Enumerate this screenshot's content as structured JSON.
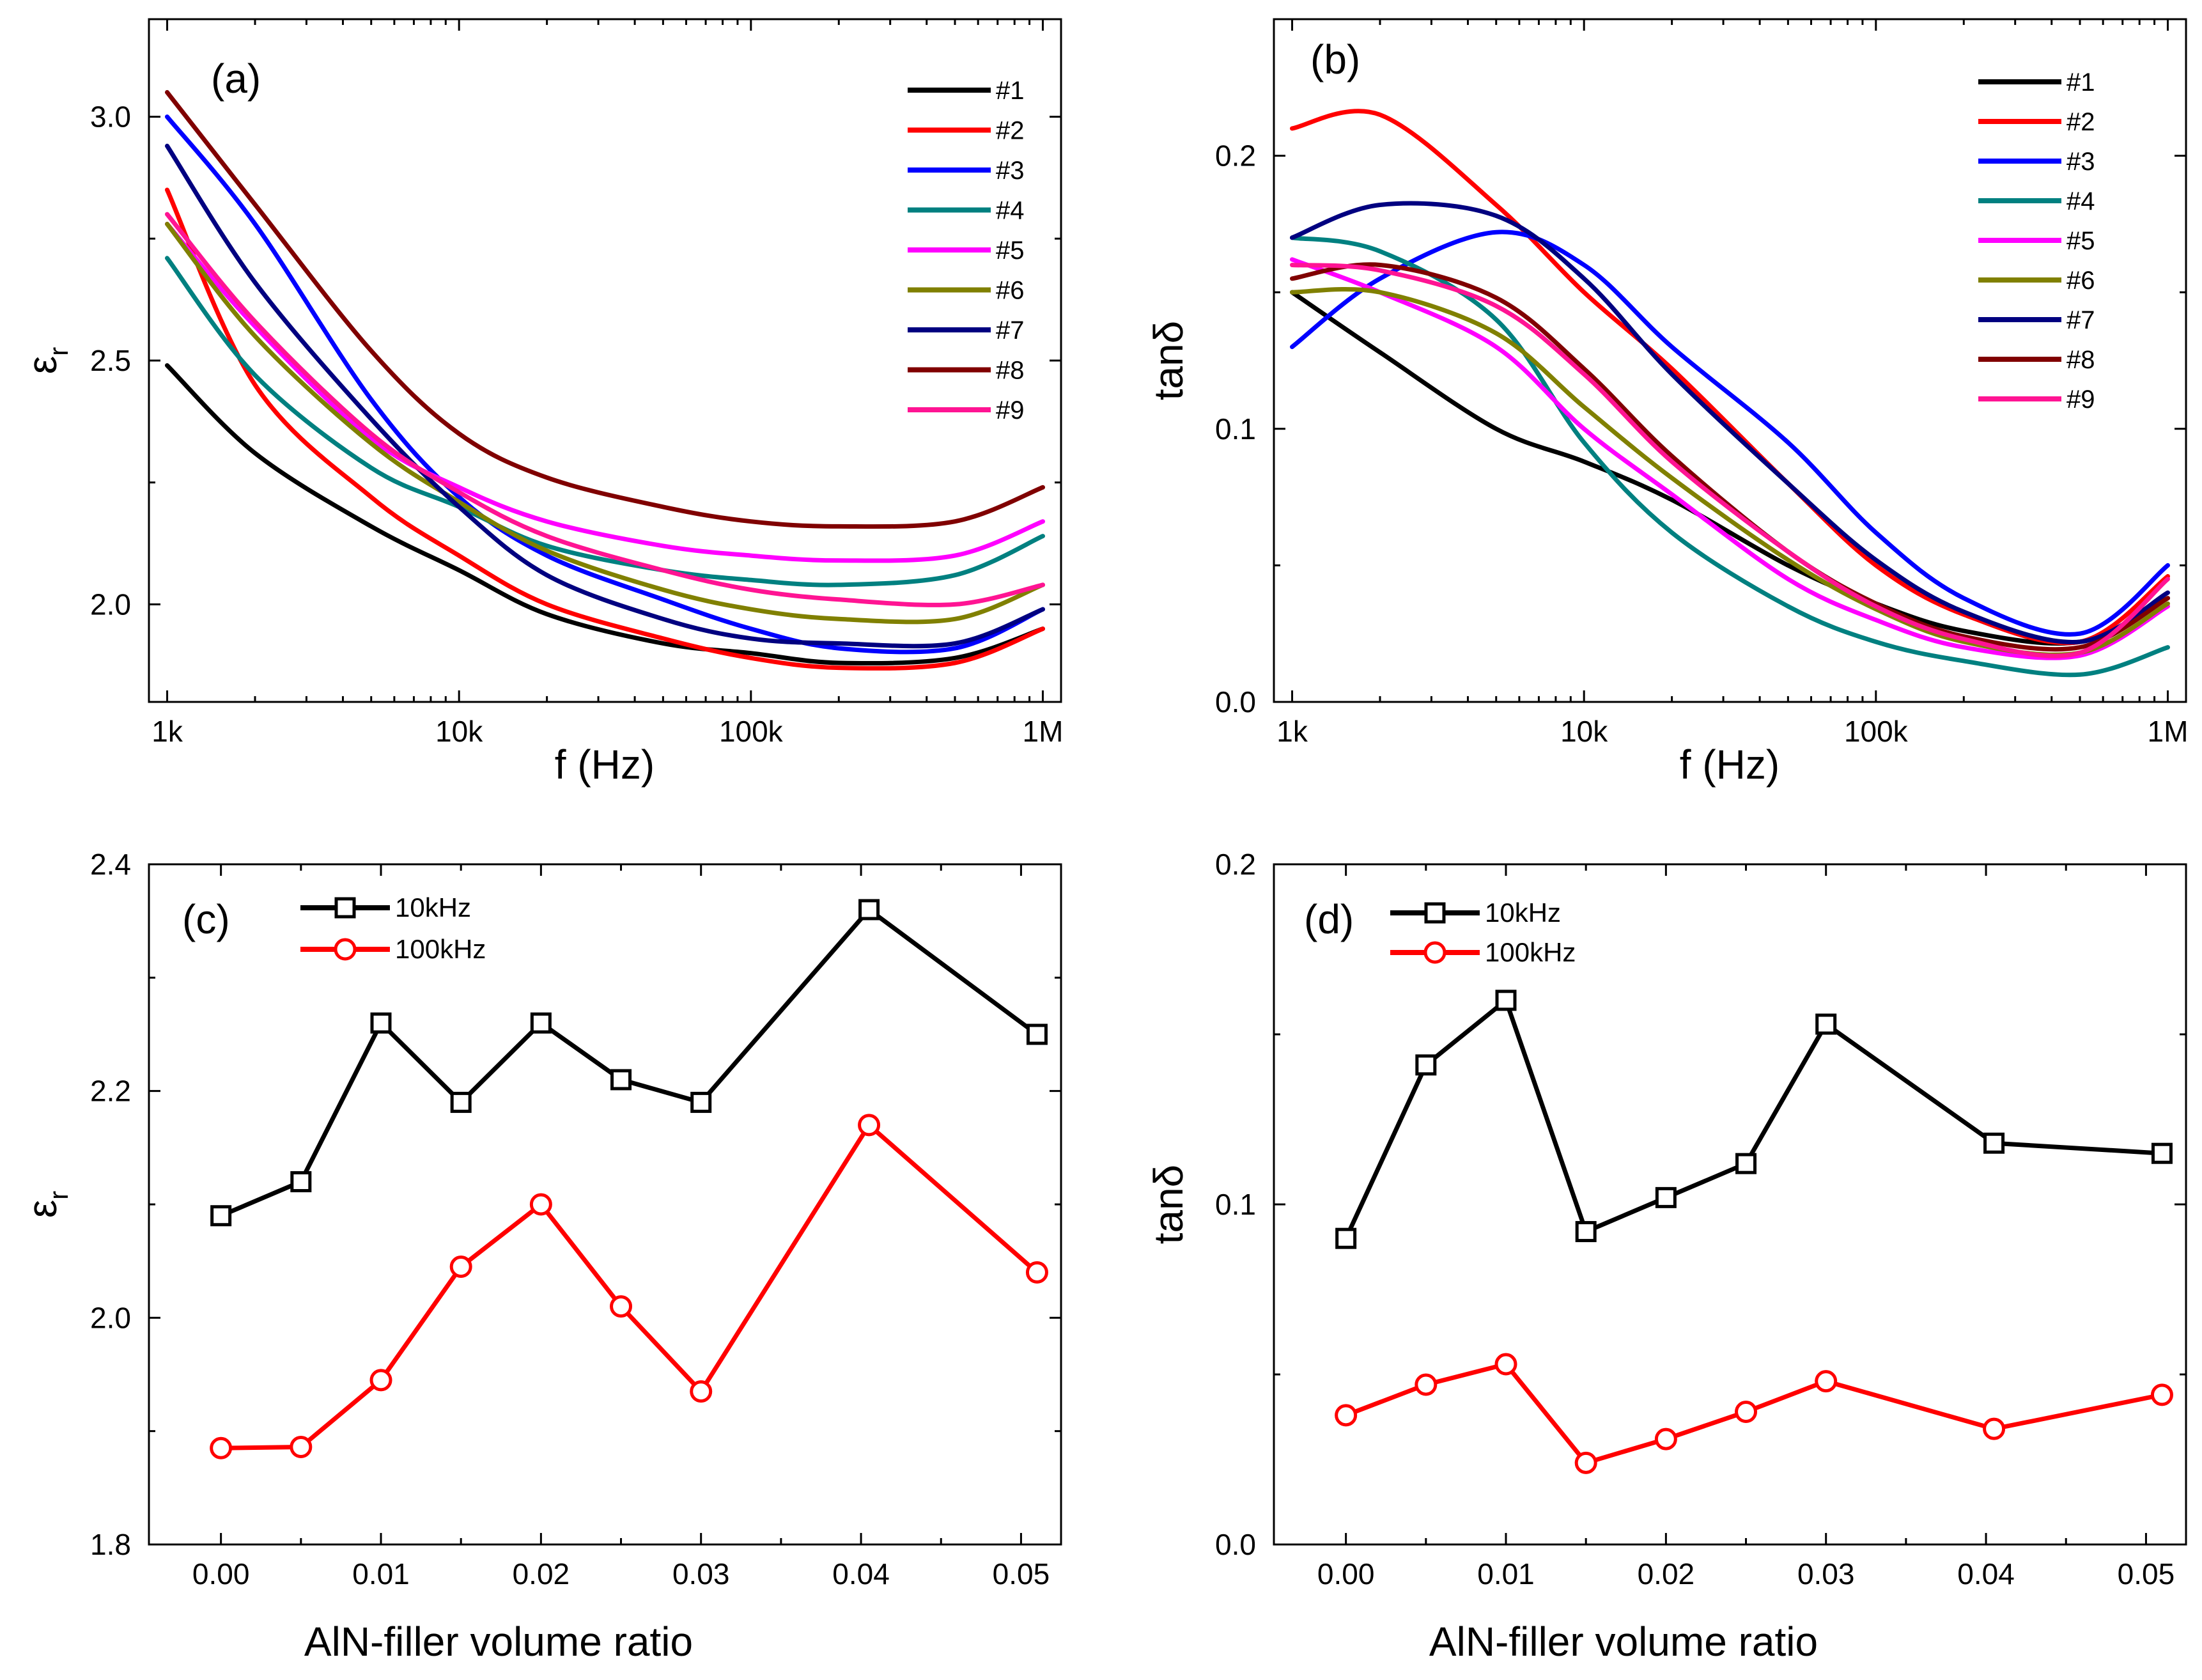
{
  "chart_data": [
    {
      "id": "a",
      "type": "line",
      "panel_label": "(a)",
      "xlabel": "f (Hz)",
      "ylabel": "εr",
      "xscale": "log",
      "xlim": [
        1000,
        1000000
      ],
      "ylim": [
        1.8,
        3.2
      ],
      "xticks": [
        1000,
        10000,
        100000,
        1000000
      ],
      "xtick_labels": [
        "1k",
        "10k",
        "100k",
        "1M"
      ],
      "yticks": [
        2.0,
        2.5,
        3.0
      ],
      "ytick_labels": [
        "2.0",
        "2.5",
        "3.0"
      ],
      "legend_position": "top-right",
      "series": [
        {
          "name": "#1",
          "color": "#000000",
          "x": [
            1000,
            2000,
            5000,
            10000,
            20000,
            50000,
            100000,
            200000,
            500000,
            1000000
          ],
          "y": [
            2.49,
            2.31,
            2.16,
            2.07,
            1.98,
            1.92,
            1.9,
            1.88,
            1.89,
            1.95
          ]
        },
        {
          "name": "#2",
          "color": "#ff0000",
          "x": [
            1000,
            2000,
            5000,
            10000,
            20000,
            50000,
            100000,
            200000,
            500000,
            1000000
          ],
          "y": [
            2.85,
            2.45,
            2.22,
            2.1,
            2.0,
            1.93,
            1.89,
            1.87,
            1.88,
            1.95
          ]
        },
        {
          "name": "#3",
          "color": "#0000ff",
          "x": [
            1000,
            2000,
            5000,
            10000,
            20000,
            50000,
            100000,
            200000,
            500000,
            1000000
          ],
          "y": [
            3.0,
            2.78,
            2.42,
            2.22,
            2.1,
            2.01,
            1.95,
            1.91,
            1.91,
            1.99
          ]
        },
        {
          "name": "#4",
          "color": "#008080",
          "x": [
            1000,
            2000,
            5000,
            10000,
            20000,
            50000,
            100000,
            200000,
            500000,
            1000000
          ],
          "y": [
            2.71,
            2.47,
            2.28,
            2.2,
            2.12,
            2.07,
            2.05,
            2.04,
            2.06,
            2.14
          ]
        },
        {
          "name": "#5",
          "color": "#ff00ff",
          "x": [
            1000,
            2000,
            5000,
            10000,
            20000,
            50000,
            100000,
            200000,
            500000,
            1000000
          ],
          "y": [
            2.78,
            2.57,
            2.34,
            2.24,
            2.17,
            2.12,
            2.1,
            2.09,
            2.1,
            2.17
          ]
        },
        {
          "name": "#6",
          "color": "#808000",
          "x": [
            1000,
            2000,
            5000,
            10000,
            20000,
            50000,
            100000,
            200000,
            500000,
            1000000
          ],
          "y": [
            2.78,
            2.55,
            2.33,
            2.21,
            2.11,
            2.03,
            1.99,
            1.97,
            1.97,
            2.04
          ]
        },
        {
          "name": "#7",
          "color": "#000080",
          "x": [
            1000,
            2000,
            5000,
            10000,
            20000,
            50000,
            100000,
            200000,
            500000,
            1000000
          ],
          "y": [
            2.94,
            2.66,
            2.38,
            2.2,
            2.06,
            1.97,
            1.93,
            1.92,
            1.92,
            1.99
          ]
        },
        {
          "name": "#8",
          "color": "#800000",
          "x": [
            1000,
            2000,
            5000,
            10000,
            20000,
            50000,
            100000,
            200000,
            500000,
            1000000
          ],
          "y": [
            3.05,
            2.82,
            2.52,
            2.35,
            2.26,
            2.2,
            2.17,
            2.16,
            2.17,
            2.24
          ]
        },
        {
          "name": "#9",
          "color": "#ff1493",
          "x": [
            1000,
            2000,
            5000,
            10000,
            20000,
            50000,
            100000,
            200000,
            500000,
            1000000
          ],
          "y": [
            2.8,
            2.58,
            2.35,
            2.23,
            2.14,
            2.07,
            2.03,
            2.01,
            2.0,
            2.04
          ]
        }
      ]
    },
    {
      "id": "b",
      "type": "line",
      "panel_label": "(b)",
      "xlabel": "f (Hz)",
      "ylabel": "tanδ",
      "xscale": "log",
      "xlim": [
        1000,
        1000000
      ],
      "ylim": [
        0.0,
        0.25
      ],
      "xticks": [
        1000,
        10000,
        100000,
        1000000
      ],
      "xtick_labels": [
        "1k",
        "10k",
        "100k",
        "1M"
      ],
      "yticks": [
        0.0,
        0.1,
        0.2
      ],
      "ytick_labels": [
        "0.0",
        "0.1",
        "0.2"
      ],
      "legend_position": "top-right",
      "series": [
        {
          "name": "#1",
          "color": "#000000",
          "x": [
            1000,
            2000,
            5000,
            10000,
            20000,
            50000,
            100000,
            200000,
            500000,
            1000000
          ],
          "y": [
            0.15,
            0.128,
            0.1,
            0.088,
            0.074,
            0.05,
            0.036,
            0.026,
            0.022,
            0.038
          ]
        },
        {
          "name": "#2",
          "color": "#ff0000",
          "x": [
            1000,
            2000,
            5000,
            10000,
            20000,
            50000,
            100000,
            200000,
            500000,
            1000000
          ],
          "y": [
            0.21,
            0.215,
            0.182,
            0.15,
            0.122,
            0.08,
            0.05,
            0.032,
            0.022,
            0.046
          ]
        },
        {
          "name": "#3",
          "color": "#0000ff",
          "x": [
            1000,
            2000,
            5000,
            10000,
            20000,
            50000,
            100000,
            200000,
            500000,
            1000000
          ],
          "y": [
            0.13,
            0.155,
            0.172,
            0.16,
            0.13,
            0.095,
            0.062,
            0.038,
            0.025,
            0.05
          ]
        },
        {
          "name": "#4",
          "color": "#008080",
          "x": [
            1000,
            2000,
            5000,
            10000,
            20000,
            50000,
            100000,
            200000,
            500000,
            1000000
          ],
          "y": [
            0.17,
            0.165,
            0.14,
            0.095,
            0.062,
            0.035,
            0.022,
            0.015,
            0.01,
            0.02
          ]
        },
        {
          "name": "#5",
          "color": "#ff00ff",
          "x": [
            1000,
            2000,
            5000,
            10000,
            20000,
            50000,
            100000,
            200000,
            500000,
            1000000
          ],
          "y": [
            0.162,
            0.15,
            0.13,
            0.1,
            0.076,
            0.045,
            0.03,
            0.02,
            0.017,
            0.035
          ]
        },
        {
          "name": "#6",
          "color": "#808000",
          "x": [
            1000,
            2000,
            5000,
            10000,
            20000,
            50000,
            100000,
            200000,
            500000,
            1000000
          ],
          "y": [
            0.15,
            0.15,
            0.135,
            0.108,
            0.082,
            0.052,
            0.034,
            0.022,
            0.018,
            0.036
          ]
        },
        {
          "name": "#7",
          "color": "#000080",
          "x": [
            1000,
            2000,
            5000,
            10000,
            20000,
            50000,
            100000,
            200000,
            500000,
            1000000
          ],
          "y": [
            0.17,
            0.182,
            0.178,
            0.155,
            0.12,
            0.08,
            0.052,
            0.033,
            0.022,
            0.04
          ]
        },
        {
          "name": "#8",
          "color": "#800000",
          "x": [
            1000,
            2000,
            5000,
            10000,
            20000,
            50000,
            100000,
            200000,
            500000,
            1000000
          ],
          "y": [
            0.155,
            0.16,
            0.148,
            0.122,
            0.09,
            0.055,
            0.036,
            0.024,
            0.02,
            0.038
          ]
        },
        {
          "name": "#9",
          "color": "#ff1493",
          "x": [
            1000,
            2000,
            5000,
            10000,
            20000,
            50000,
            100000,
            200000,
            500000,
            1000000
          ],
          "y": [
            0.16,
            0.158,
            0.145,
            0.12,
            0.088,
            0.055,
            0.035,
            0.023,
            0.018,
            0.045
          ]
        }
      ]
    },
    {
      "id": "c",
      "type": "line",
      "panel_label": "(c)",
      "xlabel": "AlN-filler volume ratio",
      "ylabel": "εr",
      "xlim": [
        -0.0045,
        0.0525
      ],
      "ylim": [
        1.8,
        2.4
      ],
      "xticks": [
        0.0,
        0.01,
        0.02,
        0.03,
        0.04,
        0.05
      ],
      "xtick_labels": [
        "0.00",
        "0.01",
        "0.02",
        "0.03",
        "0.04",
        "0.05"
      ],
      "yticks": [
        1.8,
        2.0,
        2.2,
        2.4
      ],
      "ytick_labels": [
        "1.8",
        "2.0",
        "2.2",
        "2.4"
      ],
      "legend_position": "top-left",
      "series": [
        {
          "name": "10kHz",
          "color": "#000000",
          "marker": "square",
          "x": [
            0.0,
            0.005,
            0.01,
            0.015,
            0.02,
            0.025,
            0.03,
            0.0405,
            0.051
          ],
          "y": [
            2.09,
            2.12,
            2.26,
            2.19,
            2.26,
            2.21,
            2.19,
            2.36,
            2.25
          ]
        },
        {
          "name": "100kHz",
          "color": "#ff0000",
          "marker": "circle",
          "x": [
            0.0,
            0.005,
            0.01,
            0.015,
            0.02,
            0.025,
            0.03,
            0.0405,
            0.051
          ],
          "y": [
            1.885,
            1.886,
            1.945,
            2.045,
            2.1,
            2.01,
            1.935,
            2.17,
            2.04
          ]
        }
      ]
    },
    {
      "id": "d",
      "type": "line",
      "panel_label": "(d)",
      "xlabel": "AlN-filler volume ratio",
      "ylabel": "tanδ",
      "xlim": [
        -0.0045,
        0.0525
      ],
      "ylim": [
        0.0,
        0.2
      ],
      "xticks": [
        0.0,
        0.01,
        0.02,
        0.03,
        0.04,
        0.05
      ],
      "xtick_labels": [
        "0.00",
        "0.01",
        "0.02",
        "0.03",
        "0.04",
        "0.05"
      ],
      "yticks": [
        0.0,
        0.1,
        0.2
      ],
      "ytick_labels": [
        "0.0",
        "0.1",
        "0.2"
      ],
      "legend_position": "top-left",
      "series": [
        {
          "name": "10kHz",
          "color": "#000000",
          "marker": "square",
          "x": [
            0.0,
            0.005,
            0.01,
            0.015,
            0.02,
            0.025,
            0.03,
            0.0405,
            0.051
          ],
          "y": [
            0.09,
            0.141,
            0.16,
            0.092,
            0.102,
            0.112,
            0.153,
            0.118,
            0.115
          ]
        },
        {
          "name": "100kHz",
          "color": "#ff0000",
          "marker": "circle",
          "x": [
            0.0,
            0.005,
            0.01,
            0.015,
            0.02,
            0.025,
            0.03,
            0.0405,
            0.051
          ],
          "y": [
            0.038,
            0.047,
            0.053,
            0.024,
            0.031,
            0.039,
            0.048,
            0.034,
            0.044
          ]
        }
      ]
    }
  ]
}
